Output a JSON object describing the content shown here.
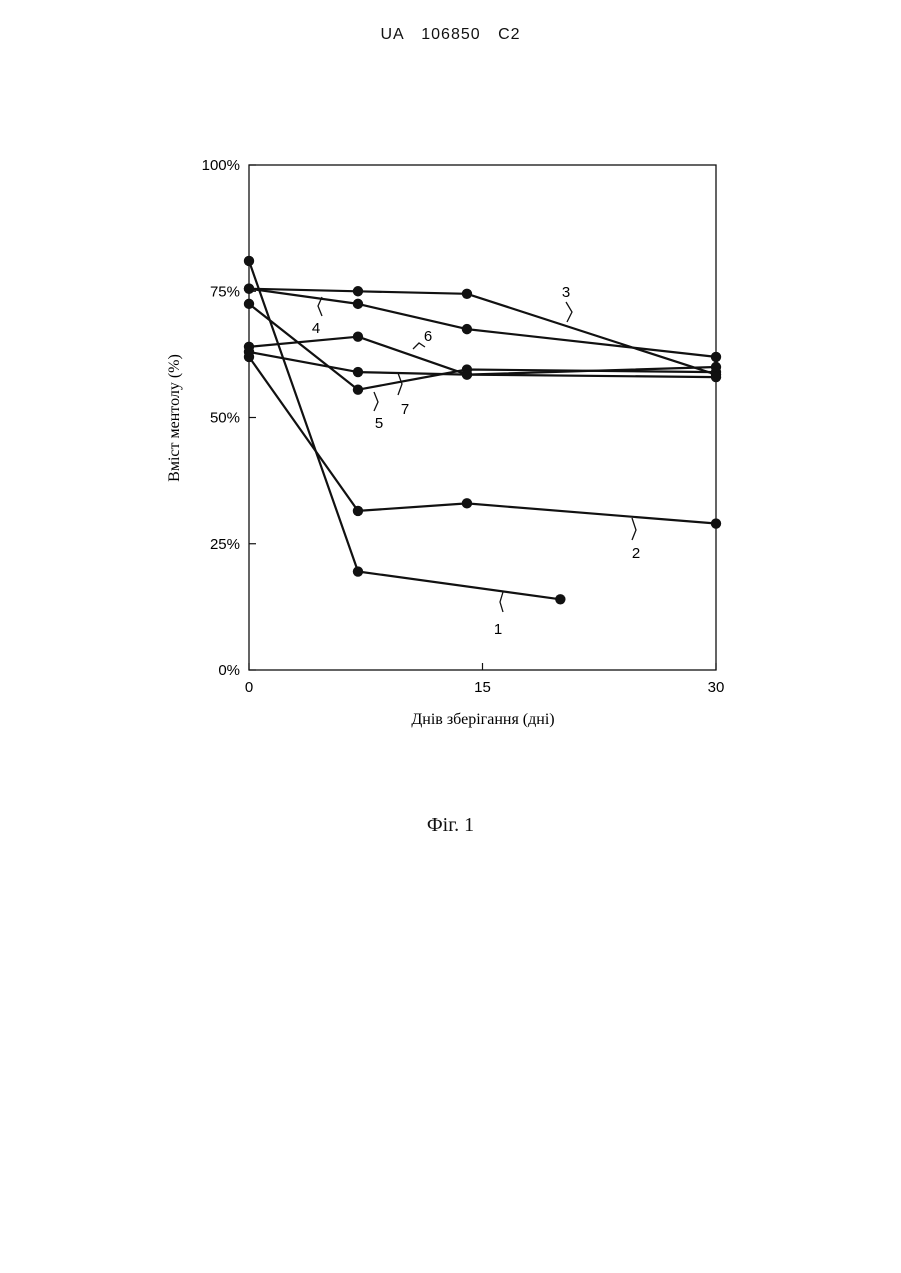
{
  "document": {
    "header": "UA 106850 C2",
    "caption": "Фіг. 1"
  },
  "chart_data": {
    "type": "line",
    "title": "",
    "xlabel": "Днів зберігання (дні)",
    "ylabel": "Вміст ментолу (%)",
    "xlim": [
      0,
      30
    ],
    "ylim": [
      0,
      100
    ],
    "xticks": [
      "0",
      "15",
      "30"
    ],
    "yticks": [
      "0%",
      "25%",
      "50%",
      "75%",
      "100%"
    ],
    "grid": false,
    "legend": "none (series numbered directly on lines)",
    "colors": {
      "line": "#111111",
      "marker": "#111111"
    },
    "series": [
      {
        "name": "1",
        "x": [
          0,
          7,
          20
        ],
        "y": [
          81,
          19.5,
          14
        ]
      },
      {
        "name": "2",
        "x": [
          0,
          7,
          14,
          30
        ],
        "y": [
          62,
          31.5,
          33,
          29
        ]
      },
      {
        "name": "3",
        "x": [
          0,
          7,
          14,
          30
        ],
        "y": [
          75.5,
          75,
          74.5,
          58.5
        ]
      },
      {
        "name": "4",
        "x": [
          0,
          7,
          14,
          30
        ],
        "y": [
          75.5,
          72.5,
          67.5,
          62
        ]
      },
      {
        "name": "5",
        "x": [
          0,
          7,
          14,
          30
        ],
        "y": [
          72.5,
          55.5,
          59.5,
          59
        ]
      },
      {
        "name": "6",
        "x": [
          0,
          7,
          14,
          30
        ],
        "y": [
          64,
          66,
          58.5,
          60
        ]
      },
      {
        "name": "7",
        "x": [
          0,
          7,
          14,
          30
        ],
        "y": [
          63,
          59,
          58.5,
          58
        ]
      }
    ]
  }
}
